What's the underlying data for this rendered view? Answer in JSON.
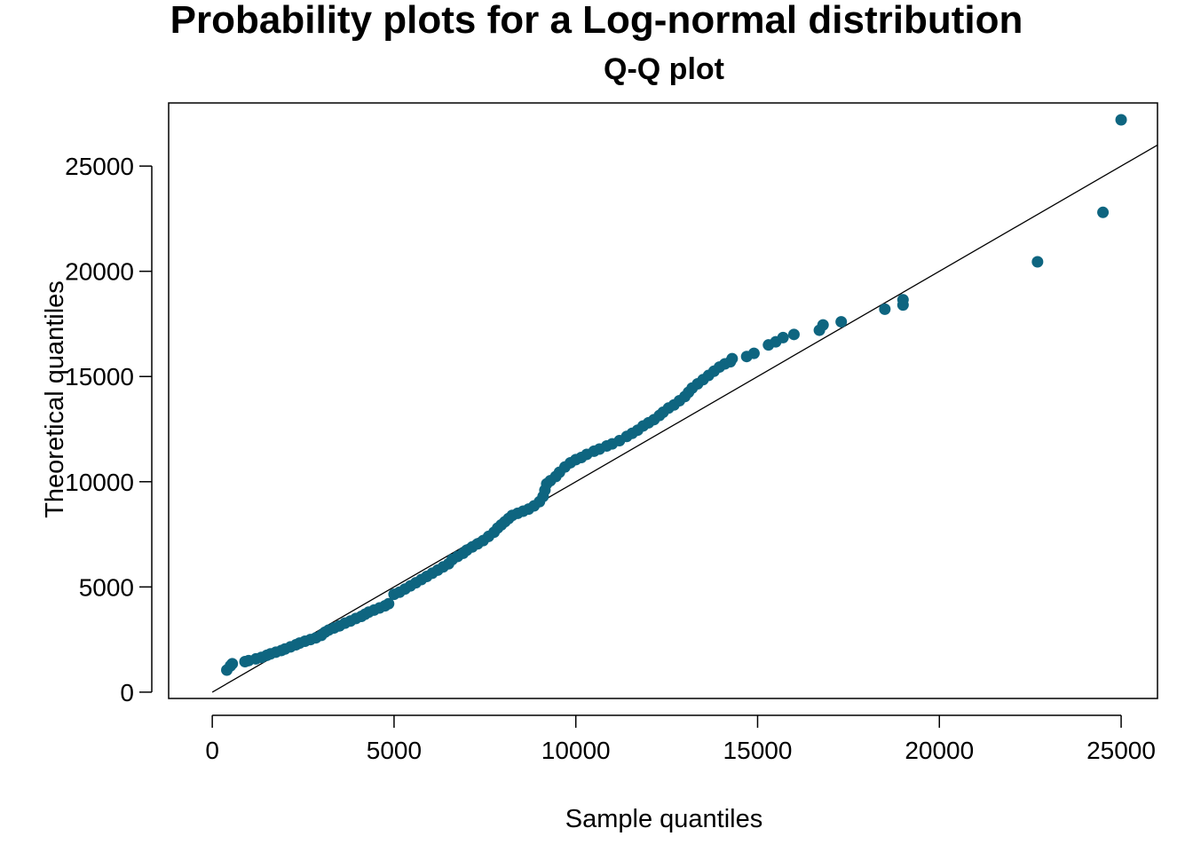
{
  "title": "Probability plots for a Log-normal distribution",
  "chart_data": {
    "type": "scatter",
    "title": "Q-Q plot",
    "xlabel": "Sample quantiles",
    "ylabel": "Theoretical quantiles",
    "xlim": [
      -1200,
      26000
    ],
    "ylim": [
      -300,
      28000
    ],
    "xticks": [
      0,
      5000,
      10000,
      15000,
      20000,
      25000
    ],
    "xtick_labels": [
      "0",
      "5000",
      "10000",
      "15000",
      "20000",
      "25000"
    ],
    "yticks": [
      0,
      5000,
      10000,
      15000,
      20000,
      25000
    ],
    "ytick_labels": [
      "0",
      "5000",
      "10000",
      "15000",
      "20000",
      "25000"
    ],
    "grid": false,
    "point_color": "#0e6580",
    "line_color": "#000000",
    "reference_line": {
      "x": [
        0,
        26000
      ],
      "y": [
        0,
        26000
      ]
    },
    "points": [
      [
        400,
        1050
      ],
      [
        500,
        1250
      ],
      [
        550,
        1350
      ],
      [
        900,
        1450
      ],
      [
        1000,
        1500
      ],
      [
        1200,
        1580
      ],
      [
        1350,
        1650
      ],
      [
        1500,
        1750
      ],
      [
        1600,
        1820
      ],
      [
        1750,
        1900
      ],
      [
        1900,
        1980
      ],
      [
        2000,
        2050
      ],
      [
        2150,
        2150
      ],
      [
        2300,
        2250
      ],
      [
        2400,
        2330
      ],
      [
        2550,
        2420
      ],
      [
        2700,
        2500
      ],
      [
        2850,
        2580
      ],
      [
        3000,
        2700
      ],
      [
        3100,
        2850
      ],
      [
        3200,
        2950
      ],
      [
        3350,
        3050
      ],
      [
        3500,
        3150
      ],
      [
        3650,
        3280
      ],
      [
        3800,
        3380
      ],
      [
        3950,
        3500
      ],
      [
        4100,
        3600
      ],
      [
        4200,
        3700
      ],
      [
        4300,
        3800
      ],
      [
        4450,
        3900
      ],
      [
        4600,
        4000
      ],
      [
        4750,
        4100
      ],
      [
        4850,
        4200
      ],
      [
        5000,
        4650
      ],
      [
        5150,
        4750
      ],
      [
        5300,
        4900
      ],
      [
        5450,
        5050
      ],
      [
        5600,
        5200
      ],
      [
        5750,
        5350
      ],
      [
        5900,
        5500
      ],
      [
        6050,
        5650
      ],
      [
        6200,
        5800
      ],
      [
        6350,
        5950
      ],
      [
        6500,
        6100
      ],
      [
        6600,
        6300
      ],
      [
        6750,
        6450
      ],
      [
        6900,
        6600
      ],
      [
        7000,
        6750
      ],
      [
        7150,
        6900
      ],
      [
        7300,
        7050
      ],
      [
        7450,
        7200
      ],
      [
        7600,
        7400
      ],
      [
        7750,
        7600
      ],
      [
        7850,
        7800
      ],
      [
        7950,
        7950
      ],
      [
        8050,
        8100
      ],
      [
        8150,
        8250
      ],
      [
        8250,
        8400
      ],
      [
        8400,
        8500
      ],
      [
        8550,
        8600
      ],
      [
        8700,
        8700
      ],
      [
        8850,
        8850
      ],
      [
        9000,
        9050
      ],
      [
        9100,
        9300
      ],
      [
        9150,
        9600
      ],
      [
        9200,
        9900
      ],
      [
        9300,
        10050
      ],
      [
        9450,
        10250
      ],
      [
        9550,
        10450
      ],
      [
        9700,
        10700
      ],
      [
        9850,
        10900
      ],
      [
        10000,
        11050
      ],
      [
        10150,
        11150
      ],
      [
        10300,
        11300
      ],
      [
        10500,
        11450
      ],
      [
        10650,
        11550
      ],
      [
        10850,
        11700
      ],
      [
        11000,
        11800
      ],
      [
        11200,
        11950
      ],
      [
        11400,
        12150
      ],
      [
        11550,
        12300
      ],
      [
        11700,
        12450
      ],
      [
        11850,
        12650
      ],
      [
        12000,
        12800
      ],
      [
        12150,
        12950
      ],
      [
        12300,
        13150
      ],
      [
        12400,
        13300
      ],
      [
        12550,
        13500
      ],
      [
        12700,
        13650
      ],
      [
        12850,
        13850
      ],
      [
        13000,
        14050
      ],
      [
        13100,
        14250
      ],
      [
        13200,
        14450
      ],
      [
        13350,
        14650
      ],
      [
        13500,
        14850
      ],
      [
        13650,
        15050
      ],
      [
        13800,
        15250
      ],
      [
        13950,
        15450
      ],
      [
        14100,
        15600
      ],
      [
        14250,
        15700
      ],
      [
        14300,
        15850
      ],
      [
        14700,
        15950
      ],
      [
        14900,
        16100
      ],
      [
        15300,
        16500
      ],
      [
        15500,
        16650
      ],
      [
        15700,
        16850
      ],
      [
        16000,
        17000
      ],
      [
        16700,
        17200
      ],
      [
        16800,
        17450
      ],
      [
        17300,
        17600
      ],
      [
        18500,
        18200
      ],
      [
        19000,
        18400
      ],
      [
        19000,
        18650
      ],
      [
        22700,
        20450
      ],
      [
        24500,
        22800
      ],
      [
        25000,
        27200
      ]
    ]
  }
}
